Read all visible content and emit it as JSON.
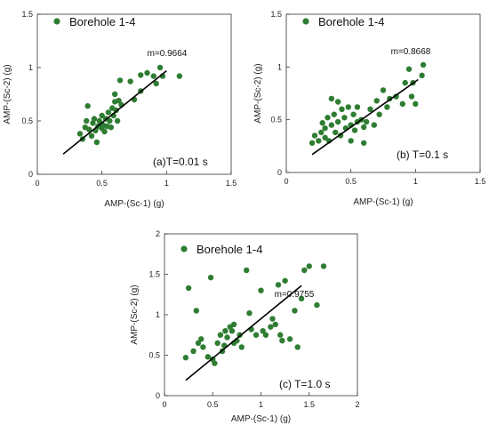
{
  "chart_data": [
    {
      "type": "scatter",
      "legend": "Borehole 1-4",
      "legend_color": "#2e7d32",
      "xlabel": "AMP-(Sc-1)  (g)",
      "ylabel": "AMP-(Sc-2)  (g)",
      "xlim": [
        0,
        1.5
      ],
      "ylim": [
        0,
        1.5
      ],
      "xticks": [
        "0",
        "0.5",
        "1",
        "1.5"
      ],
      "yticks": [
        "0",
        "0.5",
        "1",
        "1.5"
      ],
      "slope_label": "m=0.9664",
      "period_label": "(a)T=0.01 s",
      "fit_line": [
        [
          0.2,
          0.19
        ],
        [
          1.0,
          0.97
        ]
      ],
      "points": [
        [
          0.33,
          0.38
        ],
        [
          0.35,
          0.33
        ],
        [
          0.37,
          0.44
        ],
        [
          0.38,
          0.5
        ],
        [
          0.39,
          0.64
        ],
        [
          0.4,
          0.42
        ],
        [
          0.42,
          0.36
        ],
        [
          0.43,
          0.48
        ],
        [
          0.44,
          0.52
        ],
        [
          0.45,
          0.41
        ],
        [
          0.46,
          0.3
        ],
        [
          0.47,
          0.45
        ],
        [
          0.48,
          0.5
        ],
        [
          0.5,
          0.43
        ],
        [
          0.5,
          0.55
        ],
        [
          0.51,
          0.46
        ],
        [
          0.52,
          0.4
        ],
        [
          0.53,
          0.52
        ],
        [
          0.54,
          0.45
        ],
        [
          0.55,
          0.58
        ],
        [
          0.56,
          0.5
        ],
        [
          0.57,
          0.44
        ],
        [
          0.58,
          0.62
        ],
        [
          0.59,
          0.55
        ],
        [
          0.6,
          0.68
        ],
        [
          0.6,
          0.75
        ],
        [
          0.61,
          0.6
        ],
        [
          0.62,
          0.5
        ],
        [
          0.63,
          0.69
        ],
        [
          0.64,
          0.88
        ],
        [
          0.65,
          0.65
        ],
        [
          0.72,
          0.87
        ],
        [
          0.75,
          0.7
        ],
        [
          0.8,
          0.93
        ],
        [
          0.8,
          0.78
        ],
        [
          0.85,
          0.95
        ],
        [
          0.9,
          0.92
        ],
        [
          0.92,
          0.85
        ],
        [
          0.95,
          1.0
        ],
        [
          0.97,
          0.92
        ],
        [
          1.1,
          0.92
        ]
      ]
    },
    {
      "type": "scatter",
      "legend": "Borehole 1-4",
      "legend_color": "#2e7d32",
      "xlabel": "AMP-(Sc-1)  (g)",
      "ylabel": "AMP-(Sc-2)  (g)",
      "xlim": [
        0,
        1.5
      ],
      "ylim": [
        0,
        1.5
      ],
      "xticks": [
        "0",
        "0.5",
        "1",
        "1.5"
      ],
      "yticks": [
        "0",
        "0.5",
        "1",
        "1.5"
      ],
      "slope_label": "m=0.8668",
      "period_label": "(b) T=0.1 s",
      "fit_line": [
        [
          0.2,
          0.17
        ],
        [
          1.02,
          0.88
        ]
      ],
      "points": [
        [
          0.2,
          0.28
        ],
        [
          0.22,
          0.35
        ],
        [
          0.25,
          0.3
        ],
        [
          0.27,
          0.38
        ],
        [
          0.28,
          0.47
        ],
        [
          0.3,
          0.33
        ],
        [
          0.3,
          0.42
        ],
        [
          0.32,
          0.52
        ],
        [
          0.33,
          0.3
        ],
        [
          0.35,
          0.45
        ],
        [
          0.35,
          0.7
        ],
        [
          0.37,
          0.55
        ],
        [
          0.38,
          0.38
        ],
        [
          0.4,
          0.48
        ],
        [
          0.4,
          0.67
        ],
        [
          0.42,
          0.35
        ],
        [
          0.43,
          0.6
        ],
        [
          0.45,
          0.52
        ],
        [
          0.46,
          0.42
        ],
        [
          0.48,
          0.62
        ],
        [
          0.5,
          0.45
        ],
        [
          0.5,
          0.3
        ],
        [
          0.52,
          0.55
        ],
        [
          0.53,
          0.4
        ],
        [
          0.55,
          0.48
        ],
        [
          0.55,
          0.62
        ],
        [
          0.58,
          0.5
        ],
        [
          0.6,
          0.43
        ],
        [
          0.6,
          0.28
        ],
        [
          0.62,
          0.48
        ],
        [
          0.65,
          0.6
        ],
        [
          0.68,
          0.45
        ],
        [
          0.7,
          0.68
        ],
        [
          0.72,
          0.55
        ],
        [
          0.75,
          0.78
        ],
        [
          0.78,
          0.62
        ],
        [
          0.8,
          0.7
        ],
        [
          0.85,
          0.72
        ],
        [
          0.9,
          0.65
        ],
        [
          0.92,
          0.85
        ],
        [
          0.95,
          0.98
        ],
        [
          0.97,
          0.72
        ],
        [
          0.98,
          0.85
        ],
        [
          1.0,
          0.65
        ],
        [
          1.05,
          0.92
        ],
        [
          1.06,
          1.02
        ]
      ]
    },
    {
      "type": "scatter",
      "legend": "Borehole 1-4",
      "legend_color": "#2e7d32",
      "xlabel": "AMP-(Sc-1)  (g)",
      "ylabel": "AMP-(Sc-2)  (g)",
      "xlim": [
        0,
        2
      ],
      "ylim": [
        0,
        2
      ],
      "xticks": [
        "0",
        "0.5",
        "1",
        "1.5",
        "2"
      ],
      "yticks": [
        "0",
        "0.5",
        "1",
        "1.5",
        "2"
      ],
      "slope_label": "m=0.9755",
      "period_label": "(c)  T=1.0 s",
      "fit_line": [
        [
          0.22,
          0.19
        ],
        [
          1.42,
          1.36
        ]
      ],
      "points": [
        [
          0.22,
          0.47
        ],
        [
          0.25,
          1.33
        ],
        [
          0.3,
          0.55
        ],
        [
          0.33,
          1.05
        ],
        [
          0.35,
          0.65
        ],
        [
          0.38,
          0.7
        ],
        [
          0.4,
          0.6
        ],
        [
          0.45,
          0.48
        ],
        [
          0.48,
          1.46
        ],
        [
          0.5,
          0.45
        ],
        [
          0.52,
          0.4
        ],
        [
          0.55,
          0.65
        ],
        [
          0.58,
          0.75
        ],
        [
          0.6,
          0.55
        ],
        [
          0.62,
          0.62
        ],
        [
          0.63,
          0.8
        ],
        [
          0.65,
          0.72
        ],
        [
          0.68,
          0.85
        ],
        [
          0.7,
          0.8
        ],
        [
          0.72,
          0.88
        ],
        [
          0.72,
          0.65
        ],
        [
          0.75,
          0.68
        ],
        [
          0.78,
          0.75
        ],
        [
          0.8,
          0.6
        ],
        [
          0.85,
          1.55
        ],
        [
          0.88,
          1.02
        ],
        [
          0.9,
          0.82
        ],
        [
          0.95,
          0.75
        ],
        [
          1.0,
          1.3
        ],
        [
          1.02,
          0.8
        ],
        [
          1.05,
          0.75
        ],
        [
          1.1,
          0.85
        ],
        [
          1.12,
          0.95
        ],
        [
          1.15,
          0.88
        ],
        [
          1.18,
          1.37
        ],
        [
          1.2,
          0.75
        ],
        [
          1.22,
          0.68
        ],
        [
          1.25,
          1.42
        ],
        [
          1.3,
          0.7
        ],
        [
          1.35,
          1.05
        ],
        [
          1.38,
          0.6
        ],
        [
          1.42,
          1.2
        ],
        [
          1.45,
          1.55
        ],
        [
          1.5,
          1.6
        ],
        [
          1.58,
          1.12
        ],
        [
          1.65,
          1.6
        ]
      ]
    }
  ]
}
